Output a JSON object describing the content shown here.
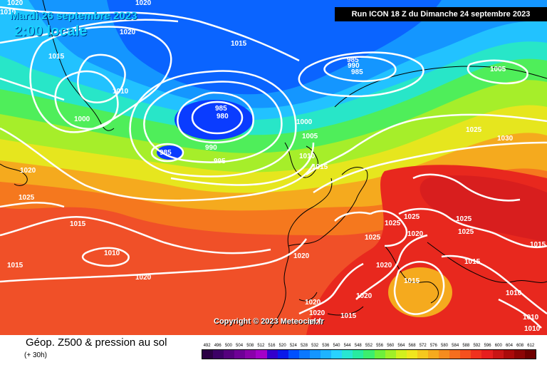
{
  "header": {
    "valid_date": "Mardi 26 septembre 2023",
    "local_time": "2:00 locale",
    "run_info": "Run ICON 18 Z du Dimanche 24 septembre 2023"
  },
  "copyright": "Copyright © 2023 Meteociel.fr",
  "legend": {
    "title": "Géop. Z500 & pression au sol",
    "subtitle": "(+ 30h)",
    "scale_values": [
      "492",
      "496",
      "500",
      "504",
      "508",
      "512",
      "516",
      "520",
      "524",
      "528",
      "532",
      "536",
      "540",
      "544",
      "548",
      "552",
      "556",
      "560",
      "564",
      "568",
      "572",
      "576",
      "580",
      "584",
      "588",
      "592",
      "596",
      "600",
      "604",
      "608",
      "612"
    ],
    "scale_colors": [
      "#2b0044",
      "#3c0066",
      "#55007e",
      "#6e0096",
      "#8a00aa",
      "#a400c8",
      "#3300cc",
      "#0a1aea",
      "#0050ff",
      "#0a78ff",
      "#1496ff",
      "#1eb4ff",
      "#28d2ff",
      "#28e6d2",
      "#28eba0",
      "#3cee6e",
      "#6ef03c",
      "#a0f028",
      "#d2f01e",
      "#f0e61e",
      "#f5c81e",
      "#f5aa1e",
      "#f58c1e",
      "#f56e1e",
      "#f5501e",
      "#f0321e",
      "#e61e1e",
      "#c81414",
      "#aa0a0a",
      "#8c0505",
      "#6e0000"
    ]
  },
  "isobars": [
    {
      "label": "1020"
    },
    {
      "label": "1020"
    },
    {
      "label": "1020"
    },
    {
      "label": "1015"
    },
    {
      "label": "1015"
    },
    {
      "label": "1010"
    },
    {
      "label": "1000"
    },
    {
      "label": "995"
    },
    {
      "label": "990"
    },
    {
      "label": "985"
    },
    {
      "label": "985"
    },
    {
      "label": "980"
    },
    {
      "label": "985"
    },
    {
      "label": "985"
    },
    {
      "label": "990"
    },
    {
      "label": "995"
    },
    {
      "label": "1000"
    },
    {
      "label": "1005"
    },
    {
      "label": "1010"
    },
    {
      "label": "1015"
    },
    {
      "label": "1005"
    },
    {
      "label": "1025"
    },
    {
      "label": "1030"
    },
    {
      "label": "1025"
    },
    {
      "label": "1025"
    },
    {
      "label": "1025"
    },
    {
      "label": "1025"
    },
    {
      "label": "1020"
    },
    {
      "label": "1025"
    },
    {
      "label": "1025"
    },
    {
      "label": "1020"
    },
    {
      "label": "1020"
    },
    {
      "label": "1015"
    },
    {
      "label": "1020"
    },
    {
      "label": "1020"
    },
    {
      "label": "1020"
    },
    {
      "label": "1015"
    },
    {
      "label": "1015"
    },
    {
      "label": "1010"
    },
    {
      "label": "1015"
    },
    {
      "label": "1010"
    },
    {
      "label": "1015"
    },
    {
      "label": "1020"
    },
    {
      "label": "1010"
    },
    {
      "label": "1010"
    },
    {
      "label": "1015"
    },
    {
      "label": "1020"
    },
    {
      "label": "1015"
    },
    {
      "label": "1010"
    },
    {
      "label": "1020"
    },
    {
      "label": "1020"
    },
    {
      "label": "1015"
    },
    {
      "label": "1010"
    }
  ]
}
